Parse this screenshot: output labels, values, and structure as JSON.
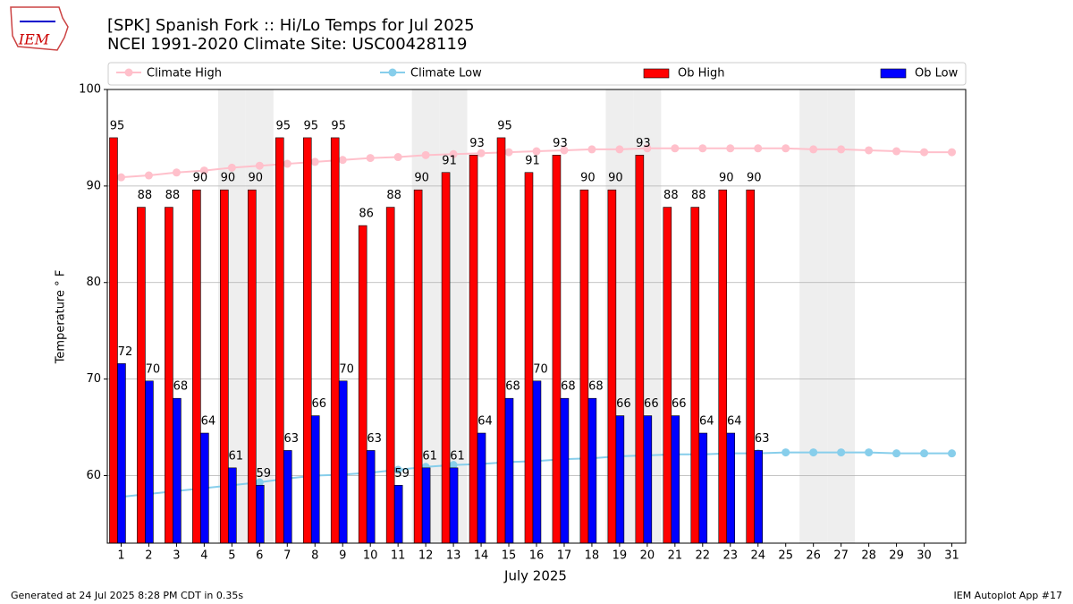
{
  "logo": "IEM",
  "footer_left": "Generated at 24 Jul 2025 8:28 PM CDT in 0.35s",
  "footer_right": "IEM Autoplot App #17",
  "chart_data": {
    "type": "bar",
    "title": "[SPK] Spanish Fork :: Hi/Lo Temps for Jul 2025",
    "subtitle": "NCEI 1991-2020 Climate Site: USC00428119",
    "ylabel": "Temperature ° F",
    "xlabel": "July 2025",
    "x": [
      1,
      2,
      3,
      4,
      5,
      6,
      7,
      8,
      9,
      10,
      11,
      12,
      13,
      14,
      15,
      16,
      17,
      18,
      19,
      20,
      21,
      22,
      23,
      24,
      25,
      26,
      27,
      28,
      29,
      30,
      31
    ],
    "xlim": [
      0.5,
      31.5
    ],
    "ylim": [
      53,
      100
    ],
    "yticks": [
      60,
      70,
      80,
      90,
      100
    ],
    "grid": true,
    "shaded_days": [
      5,
      6,
      12,
      13,
      19,
      20,
      26,
      27
    ],
    "series": [
      {
        "name": "Climate High",
        "type": "line",
        "color": "#ffc0cb",
        "values": [
          90.9,
          91.1,
          91.4,
          91.6,
          91.9,
          92.1,
          92.3,
          92.5,
          92.7,
          92.9,
          93.0,
          93.2,
          93.3,
          93.4,
          93.5,
          93.6,
          93.7,
          93.8,
          93.8,
          93.9,
          93.9,
          93.9,
          93.9,
          93.9,
          93.9,
          93.8,
          93.8,
          93.7,
          93.6,
          93.5,
          93.5
        ]
      },
      {
        "name": "Climate Low",
        "type": "line",
        "color": "#87ceeb",
        "values": [
          57.8,
          58.1,
          58.4,
          58.7,
          59.0,
          59.3,
          59.7,
          60.0,
          60.1,
          60.3,
          60.6,
          60.9,
          61.1,
          61.2,
          61.4,
          61.5,
          61.7,
          61.8,
          62.0,
          62.1,
          62.2,
          62.2,
          62.3,
          62.3,
          62.4,
          62.4,
          62.4,
          62.4,
          62.3,
          62.3,
          62.3
        ]
      },
      {
        "name": "Ob High",
        "type": "bar",
        "color": "#ff0000",
        "values": [
          95,
          87.8,
          87.8,
          89.6,
          89.6,
          89.6,
          95,
          95,
          95,
          85.9,
          87.8,
          89.6,
          91.4,
          93.2,
          95,
          91.4,
          93.2,
          89.6,
          89.6,
          93.2,
          87.8,
          87.8,
          89.6,
          89.6,
          null,
          null,
          null,
          null,
          null,
          null,
          null
        ],
        "value_labels": [
          "95",
          "88",
          "88",
          "90",
          "90",
          "90",
          "95",
          "95",
          "95",
          "86",
          "88",
          "90",
          "91",
          "93",
          "95",
          "91",
          "93",
          "90",
          "90",
          "93",
          "88",
          "88",
          "90",
          "90",
          null,
          null,
          null,
          null,
          null,
          null,
          null
        ]
      },
      {
        "name": "Ob Low",
        "type": "bar",
        "color": "#0000ff",
        "values": [
          71.6,
          69.8,
          68.0,
          64.4,
          60.8,
          59.0,
          62.6,
          66.2,
          69.8,
          62.6,
          59.0,
          60.8,
          60.8,
          64.4,
          68.0,
          69.8,
          68.0,
          68.0,
          66.2,
          66.2,
          66.2,
          64.4,
          64.4,
          62.6,
          null,
          null,
          null,
          null,
          null,
          null,
          null
        ],
        "value_labels": [
          "72",
          "70",
          "68",
          "64",
          "61",
          "59",
          "63",
          "66",
          "70",
          "63",
          "59",
          "61",
          "61",
          "64",
          "68",
          "70",
          "68",
          "68",
          "66",
          "66",
          "66",
          "64",
          "64",
          "63",
          null,
          null,
          null,
          null,
          null,
          null,
          null
        ]
      }
    ]
  }
}
